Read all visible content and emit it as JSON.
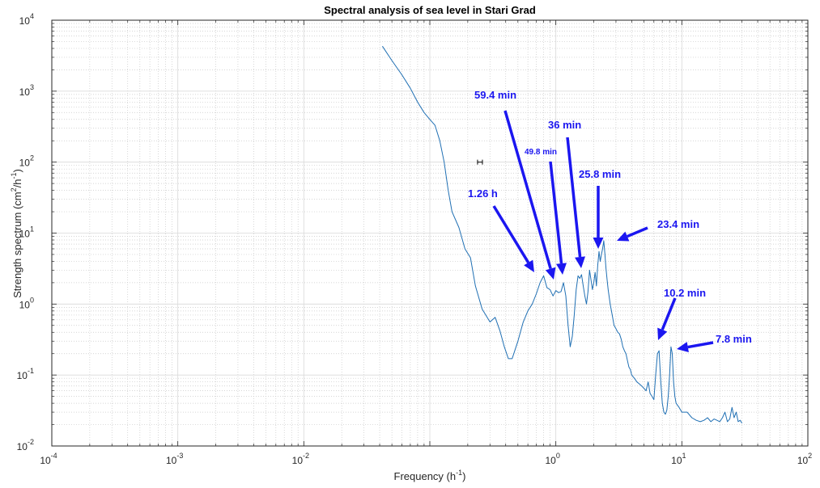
{
  "chart_data": {
    "type": "line",
    "title": "Spectral analysis of sea level in Stari Grad",
    "xlabel": "Frequency (h",
    "xlabel_sup": "-1",
    "xlabel_close": ")",
    "ylabel": "Strength spectrum (cm",
    "ylabel_sup1": "2",
    "ylabel_mid": "/h",
    "ylabel_sup2": "-1",
    "ylabel_close": ")",
    "x_scale": "log",
    "y_scale": "log",
    "xlim": [
      0.0001,
      100
    ],
    "ylim": [
      0.01,
      10000
    ],
    "grid": true,
    "minor_grid": true,
    "x_ticks": [
      {
        "base": "10",
        "exp": "-4",
        "value": 0.0001
      },
      {
        "base": "10",
        "exp": "-3",
        "value": 0.001
      },
      {
        "base": "10",
        "exp": "-2",
        "value": 0.01
      },
      {
        "base": "10",
        "exp": "0",
        "value": 1
      },
      {
        "base": "10",
        "exp": "1",
        "value": 10
      },
      {
        "base": "10",
        "exp": "2",
        "value": 100
      }
    ],
    "x_ticks_unlabeled": [
      0.1
    ],
    "y_ticks": [
      {
        "base": "10",
        "exp": "-2",
        "value": 0.01
      },
      {
        "base": "10",
        "exp": "-1",
        "value": 0.1
      },
      {
        "base": "10",
        "exp": "0",
        "value": 1
      },
      {
        "base": "10",
        "exp": "1",
        "value": 10
      },
      {
        "base": "10",
        "exp": "2",
        "value": 100
      },
      {
        "base": "10",
        "exp": "3",
        "value": 1000
      },
      {
        "base": "10",
        "exp": "4",
        "value": 10000
      }
    ],
    "line_color": "#1f6fb3",
    "annotation_color": "#1b16f0",
    "series": [
      {
        "x": [
          0.042,
          0.05,
          0.06,
          0.07,
          0.08,
          0.09,
          0.1,
          0.11,
          0.12,
          0.13,
          0.14,
          0.15,
          0.17,
          0.19,
          0.21,
          0.23,
          0.26,
          0.3,
          0.33,
          0.36,
          0.39,
          0.42,
          0.45,
          0.5,
          0.55,
          0.6,
          0.65,
          0.7,
          0.75,
          0.8,
          0.85,
          0.9,
          0.95,
          1.0,
          1.05,
          1.1,
          1.15,
          1.2,
          1.25,
          1.3,
          1.35,
          1.4,
          1.45,
          1.5,
          1.55,
          1.6,
          1.65,
          1.7,
          1.75,
          1.8,
          1.85,
          1.9,
          1.95,
          2.0,
          2.05,
          2.1,
          2.15,
          2.2,
          2.25,
          2.3,
          2.35,
          2.4,
          2.45,
          2.5,
          2.55,
          2.6,
          2.7,
          2.8,
          2.9,
          3.0,
          3.1,
          3.2,
          3.3,
          3.4,
          3.5,
          3.6,
          3.7,
          3.8,
          3.9,
          4.0,
          4.2,
          4.4,
          4.6,
          4.8,
          5.0,
          5.2,
          5.4,
          5.6,
          5.8,
          6.0,
          6.2,
          6.4,
          6.6,
          6.8,
          7.0,
          7.2,
          7.4,
          7.6,
          7.8,
          8.0,
          8.2,
          8.4,
          8.6,
          8.8,
          9.0,
          9.5,
          10,
          11,
          12,
          13,
          14,
          15,
          16,
          17,
          18,
          19,
          20,
          21,
          22,
          23,
          24,
          25,
          26,
          27,
          28,
          29,
          30
        ],
        "y": [
          4300,
          2700,
          1700,
          1100,
          700,
          500,
          400,
          330,
          200,
          100,
          40,
          20,
          12,
          6,
          4.5,
          1.8,
          0.85,
          0.56,
          0.65,
          0.42,
          0.25,
          0.17,
          0.17,
          0.3,
          0.55,
          0.8,
          1.0,
          1.4,
          2.0,
          2.5,
          1.7,
          1.6,
          1.3,
          1.55,
          1.45,
          1.5,
          2.0,
          1.3,
          0.5,
          0.25,
          0.35,
          0.7,
          1.6,
          2.5,
          2.3,
          2.6,
          1.8,
          1.3,
          1.0,
          1.5,
          3.0,
          2.2,
          1.6,
          2.0,
          2.8,
          1.8,
          3.5,
          5.5,
          4.0,
          5.0,
          6.0,
          7.8,
          5.2,
          3.2,
          2.2,
          1.6,
          1.0,
          0.7,
          0.5,
          0.45,
          0.4,
          0.38,
          0.32,
          0.25,
          0.22,
          0.2,
          0.16,
          0.13,
          0.12,
          0.1,
          0.09,
          0.08,
          0.075,
          0.07,
          0.065,
          0.06,
          0.08,
          0.055,
          0.05,
          0.045,
          0.1,
          0.2,
          0.22,
          0.08,
          0.04,
          0.03,
          0.028,
          0.032,
          0.05,
          0.1,
          0.25,
          0.2,
          0.08,
          0.05,
          0.04,
          0.035,
          0.03,
          0.03,
          0.025,
          0.023,
          0.022,
          0.023,
          0.025,
          0.022,
          0.024,
          0.023,
          0.022,
          0.025,
          0.03,
          0.022,
          0.024,
          0.035,
          0.025,
          0.03,
          0.022,
          0.023,
          0.021
        ]
      }
    ],
    "annotations": [
      {
        "text": "59.4 min",
        "size": "large"
      },
      {
        "text": "36 min",
        "size": "large"
      },
      {
        "text": "49.8 min",
        "size": "small"
      },
      {
        "text": "25.8 min",
        "size": "large"
      },
      {
        "text": "1.26 h",
        "size": "large"
      },
      {
        "text": "23.4 min",
        "size": "large"
      },
      {
        "text": "10.2 min",
        "size": "large"
      },
      {
        "text": "7.8 min",
        "size": "large"
      }
    ],
    "error_bar_marker": {
      "x": 0.25,
      "y": 100
    }
  }
}
